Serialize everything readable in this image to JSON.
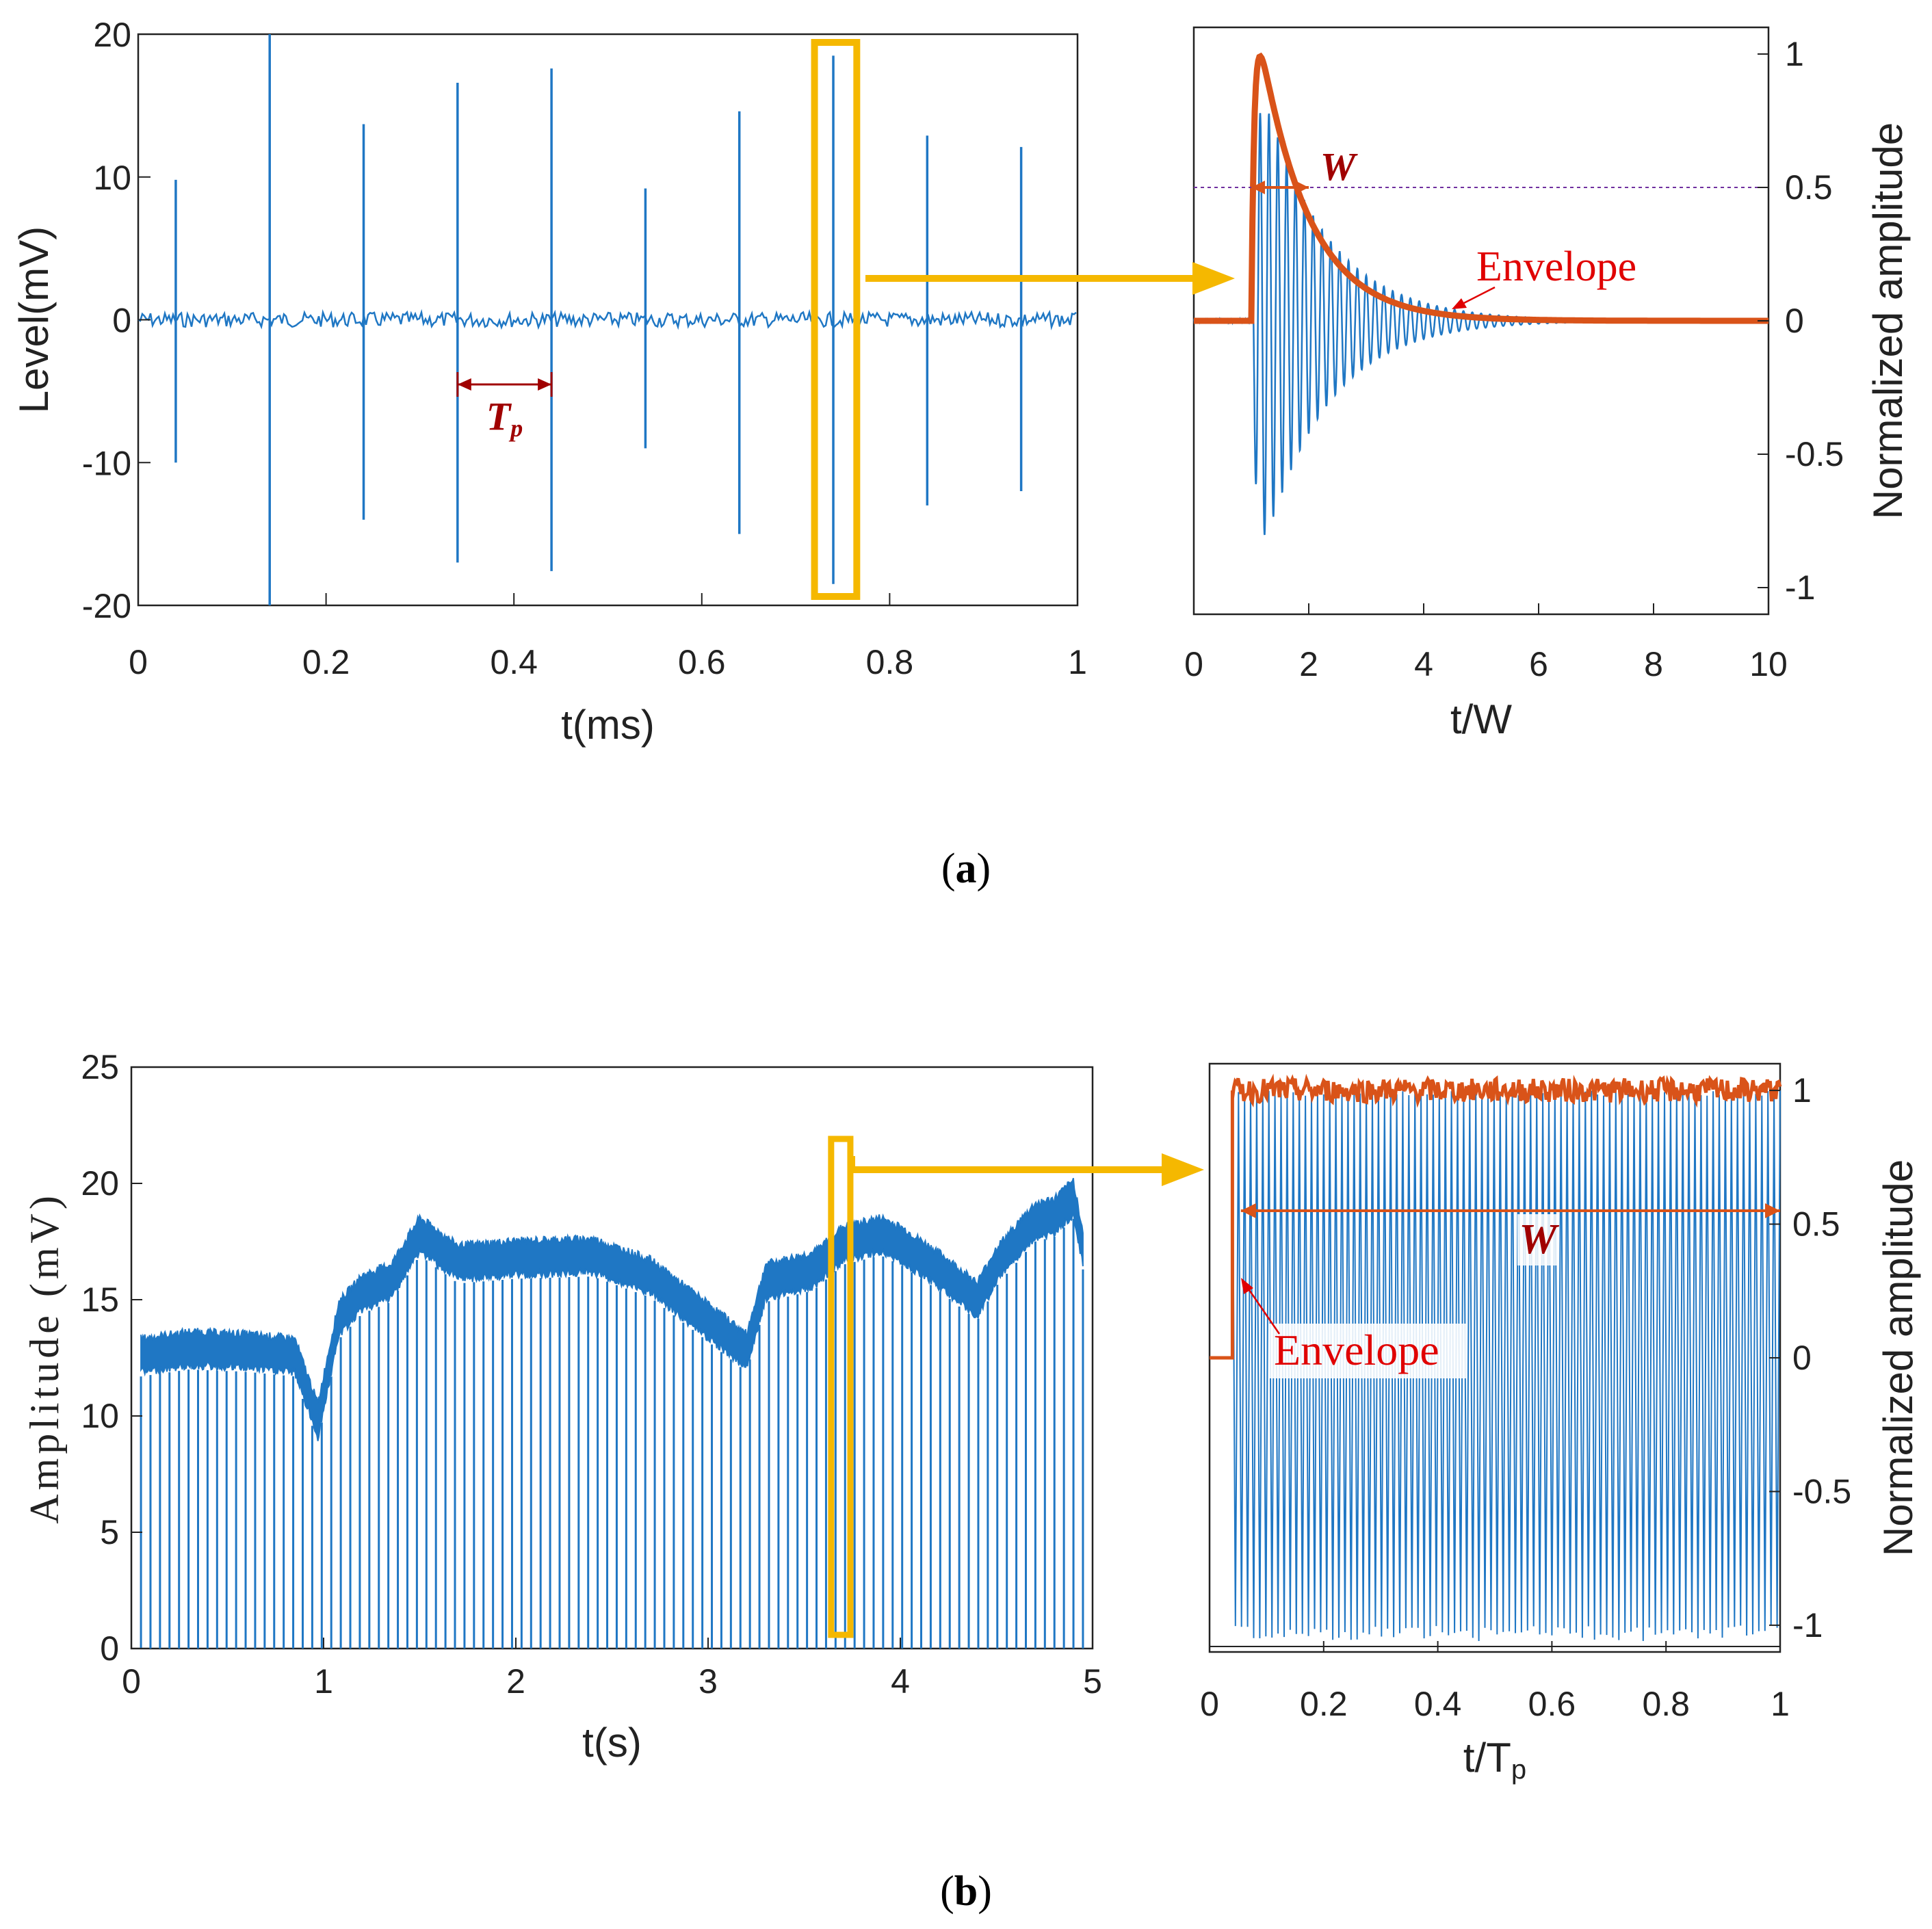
{
  "chart_data": [
    {
      "id": "a-left",
      "type": "line",
      "panel": "(a)",
      "xlabel": "t(ms)",
      "ylabel": "Level(mV)",
      "xlim": [
        0,
        1
      ],
      "ylim": [
        -20,
        20
      ],
      "xticks": [
        "0",
        "0.2",
        "0.4",
        "0.6",
        "0.8",
        "1"
      ],
      "yticks": [
        "-20",
        "-10",
        "0",
        "10",
        "20"
      ],
      "baseline_mV": 0,
      "pulses": [
        {
          "t": 0.04,
          "top": 9.8,
          "bottom": -10
        },
        {
          "t": 0.14,
          "top": 20,
          "bottom": -20
        },
        {
          "t": 0.24,
          "top": 13.7,
          "bottom": -14
        },
        {
          "t": 0.34,
          "top": 16.6,
          "bottom": -17
        },
        {
          "t": 0.44,
          "top": 17.6,
          "bottom": -17.6
        },
        {
          "t": 0.54,
          "top": 9.2,
          "bottom": -9
        },
        {
          "t": 0.64,
          "top": 14.6,
          "bottom": -15
        },
        {
          "t": 0.74,
          "top": 18.5,
          "bottom": -18.5
        },
        {
          "t": 0.84,
          "top": 12.9,
          "bottom": -13
        },
        {
          "t": 0.94,
          "top": 12.1,
          "bottom": -12
        }
      ],
      "annotation": {
        "label": "T",
        "sub": "p",
        "from_t": 0.34,
        "to_t": 0.44
      },
      "highlight_t": [
        0.72,
        0.765
      ]
    },
    {
      "id": "a-right",
      "type": "line",
      "panel": "(a)",
      "xlabel": "t/W",
      "ylabel": "Normalized amplitude",
      "xlim": [
        0,
        10
      ],
      "ylim": [
        -1.1,
        1.1
      ],
      "xticks": [
        "0",
        "2",
        "4",
        "6",
        "8",
        "10"
      ],
      "yticks": [
        "-1",
        "-0.5",
        "0",
        "0.5",
        "1"
      ],
      "series": [
        {
          "name": "oscillation",
          "onset": 1.0,
          "peak": 1.0,
          "decay": 1.1,
          "cycles_per_unit": 6.5
        },
        {
          "name": "Envelope",
          "onset": 1.0,
          "peak_at": 1.2
        }
      ],
      "half_level": 0.5,
      "width_label": "W",
      "envelope_label": "Envelope"
    },
    {
      "id": "b-left",
      "type": "line",
      "panel": "(b)",
      "xlabel": "t(s)",
      "ylabel": "Amplitude (mV)",
      "xlim": [
        0,
        5
      ],
      "ylim": [
        0,
        25
      ],
      "xticks": [
        "0",
        "1",
        "2",
        "3",
        "4",
        "5"
      ],
      "yticks": [
        "0",
        "5",
        "10",
        "15",
        "20",
        "25"
      ],
      "envelope_profile": {
        "t": [
          0.05,
          0.3,
          0.6,
          0.85,
          0.97,
          1.08,
          1.2,
          1.35,
          1.5,
          1.7,
          2.0,
          2.4,
          2.7,
          3.0,
          3.2,
          3.3,
          3.4,
          3.55,
          3.7,
          3.9,
          4.0,
          4.2,
          4.4,
          4.5,
          4.7,
          4.8,
          4.9,
          4.95
        ],
        "mV": [
          12.6,
          12.9,
          12.8,
          12.6,
          9.8,
          14.2,
          15.3,
          15.8,
          17.8,
          16.6,
          16.8,
          16.9,
          16.0,
          14.1,
          12.8,
          15.8,
          16.0,
          16.3,
          17.4,
          17.8,
          17.4,
          16.3,
          15.0,
          16.5,
          18.4,
          18.6,
          19.4,
          17.2
        ]
      },
      "pulse_count": 100,
      "highlight_t": [
        3.64,
        3.74
      ]
    },
    {
      "id": "b-right",
      "type": "line",
      "panel": "(b)",
      "xlabel_main": "t/T",
      "xlabel_sub": "p",
      "ylabel": "Normalized amplitude",
      "xlim": [
        0,
        1
      ],
      "ylim": [
        -1.1,
        1.1
      ],
      "xticks": [
        "0",
        "0.2",
        "0.4",
        "0.6",
        "0.8",
        "1"
      ],
      "yticks": [
        "-1",
        "-0.5",
        "0",
        "0.5",
        "1"
      ],
      "onset": 0.04,
      "cycles": 90,
      "width_label": "W",
      "envelope_label": "Envelope"
    }
  ],
  "panel_labels": {
    "a": "a",
    "b": "b"
  },
  "colors": {
    "signal": "#1f77c4",
    "envelope": "#d95319",
    "highlight": "#f5b800",
    "annotation": "#a00000",
    "envelope_text": "#e00000",
    "halfline": "#7030a0"
  }
}
